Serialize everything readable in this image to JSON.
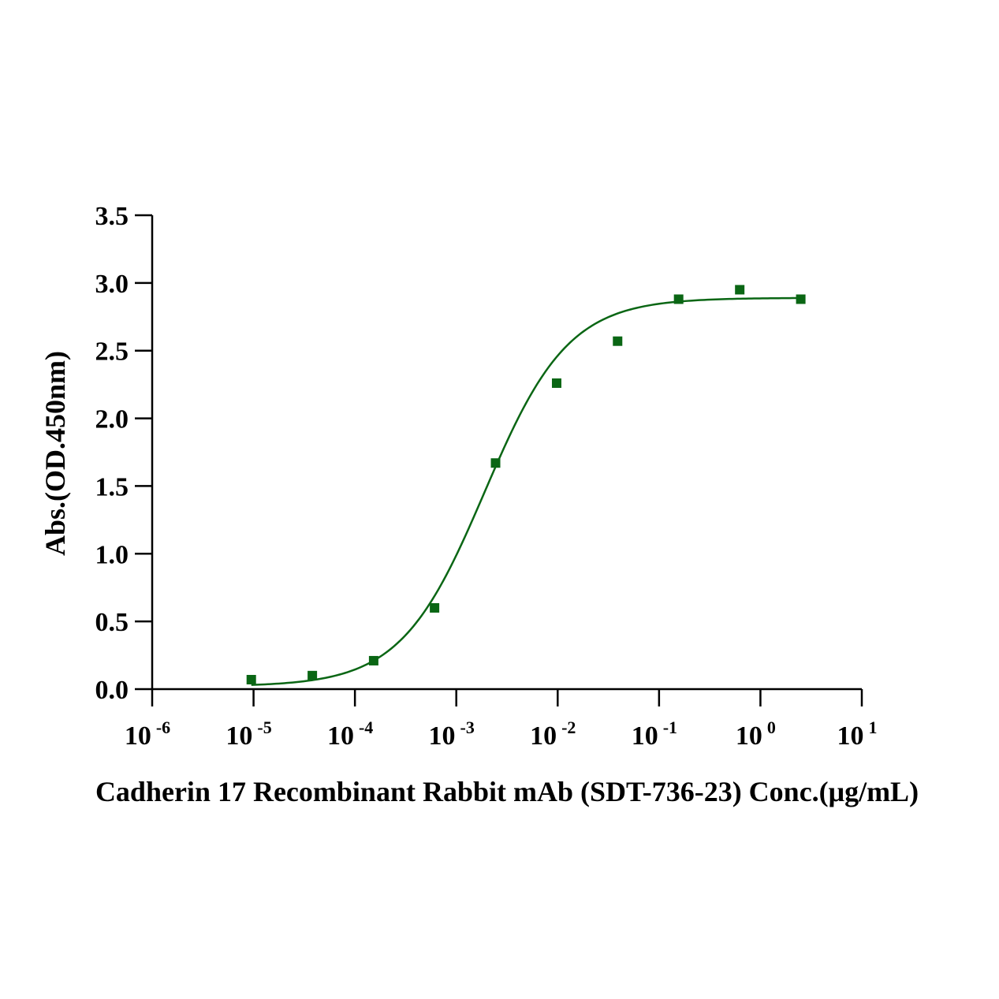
{
  "chart_data": {
    "type": "scatter",
    "title": "",
    "xlabel": "Cadherin 17 Recombinant Rabbit mAb (SDT-736-23) Conc.(μg/mL)",
    "ylabel": "Abs.(OD.450nm)",
    "x_scale": "log10",
    "xlim": [
      1e-06,
      10
    ],
    "ylim": [
      0,
      3.5
    ],
    "x_ticks": [
      {
        "base": "10",
        "exp": "-6"
      },
      {
        "base": "10",
        "exp": "-5"
      },
      {
        "base": "10",
        "exp": "-4"
      },
      {
        "base": "10",
        "exp": "-3"
      },
      {
        "base": "10",
        "exp": "-2"
      },
      {
        "base": "10",
        "exp": "-1"
      },
      {
        "base": "10",
        "exp": "0"
      },
      {
        "base": "10",
        "exp": "1"
      }
    ],
    "y_ticks": [
      "0.0",
      "0.5",
      "1.0",
      "1.5",
      "2.0",
      "2.5",
      "3.0",
      "3.5"
    ],
    "grid": false,
    "legend": "none",
    "series": [
      {
        "marker": "square",
        "color": "#0a6614",
        "x": [
          9.5e-06,
          3.8e-05,
          0.000153,
          0.00061,
          0.00244,
          0.00977,
          0.039,
          0.156,
          0.625,
          2.5
        ],
        "y": [
          0.07,
          0.1,
          0.21,
          0.6,
          1.67,
          2.26,
          2.57,
          2.88,
          2.95,
          2.88
        ]
      }
    ],
    "fit": {
      "model": "4PL",
      "color": "#0a6614",
      "bottom": 0.02,
      "top": 2.89,
      "ec50": 0.0019,
      "hill": 1.05
    }
  }
}
